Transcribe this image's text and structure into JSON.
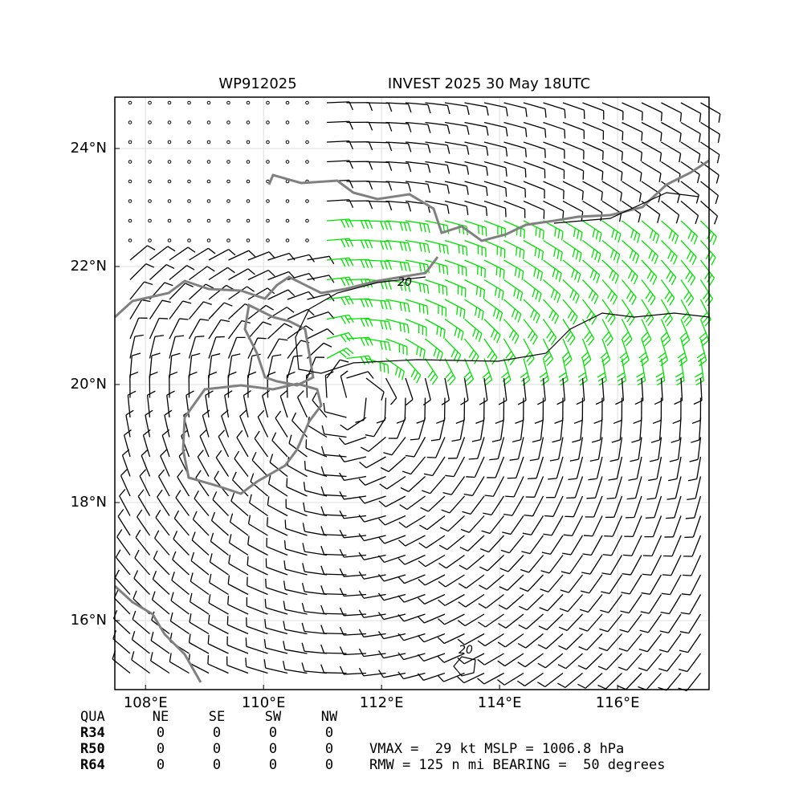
{
  "chart_data": {
    "type": "map",
    "title_left": "WP912025",
    "title": "INVEST 2025 30 May 18UTC",
    "xlim": [
      107.48,
      117.55
    ],
    "ylim": [
      14.83,
      24.87
    ],
    "xticks": [
      {
        "value": 108,
        "label": "108°E"
      },
      {
        "value": 110,
        "label": "110°E"
      },
      {
        "value": 112,
        "label": "112°E"
      },
      {
        "value": 114,
        "label": "114°E"
      },
      {
        "value": 116,
        "label": "116°E"
      }
    ],
    "yticks": [
      {
        "value": 16,
        "label": "16°N"
      },
      {
        "value": 18,
        "label": "18°N"
      },
      {
        "value": 20,
        "label": "20°N"
      },
      {
        "value": 22,
        "label": "22°N"
      },
      {
        "value": 24,
        "label": "24°N"
      }
    ],
    "grid": true,
    "contour_labels": [
      "20",
      "20"
    ]
  },
  "table": {
    "header": [
      "QUA",
      "NE",
      "SE",
      "SW",
      "NW"
    ],
    "rows": [
      [
        "R34",
        "0",
        "0",
        "0",
        "0"
      ],
      [
        "R50",
        "0",
        "0",
        "0",
        "0"
      ],
      [
        "R64",
        "0",
        "0",
        "0",
        "0"
      ]
    ]
  },
  "info": [
    "VMAX =  29 kt MSLP = 1006.8 hPa",
    "RMW = 125 n mi BEARING =  50 degrees"
  ]
}
